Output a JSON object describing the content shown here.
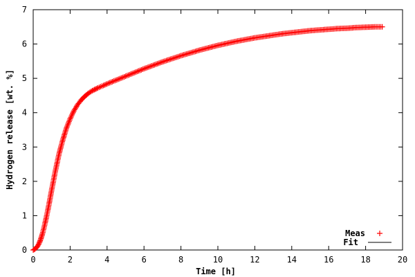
{
  "chart_data": {
    "type": "scatter",
    "xlabel": "Time [h]",
    "ylabel": "Hydrogen release [wt. %]",
    "xlim": [
      0,
      20
    ],
    "ylim": [
      0,
      7
    ],
    "xticks": [
      0,
      2,
      4,
      6,
      8,
      10,
      12,
      14,
      16,
      18,
      20
    ],
    "yticks": [
      0,
      1,
      2,
      3,
      4,
      5,
      6,
      7
    ],
    "grid": false,
    "legend_position": "bottom-right",
    "series": [
      {
        "name": "Meas",
        "style": "points",
        "marker": "plus",
        "color": "#ff0000",
        "x": [
          0.0,
          0.1,
          0.2,
          0.3,
          0.4,
          0.5,
          0.6,
          0.7,
          0.8,
          0.9,
          1.0,
          1.2,
          1.4,
          1.6,
          1.8,
          2.0,
          2.2,
          2.4,
          2.6,
          2.8,
          3.0,
          3.2,
          3.5,
          3.8,
          4.0,
          4.5,
          5.0,
          5.5,
          6.0,
          6.5,
          7.0,
          7.5,
          8.0,
          8.5,
          9.0,
          9.5,
          10.0,
          10.5,
          11.0,
          11.5,
          12.0,
          12.5,
          13.0,
          13.5,
          14.0,
          14.5,
          15.0,
          15.5,
          16.0,
          16.5,
          17.0,
          17.5,
          18.0,
          18.5,
          18.9
        ],
        "y": [
          0.0,
          0.03,
          0.08,
          0.17,
          0.3,
          0.47,
          0.68,
          0.92,
          1.18,
          1.46,
          1.75,
          2.3,
          2.8,
          3.2,
          3.55,
          3.82,
          4.05,
          4.23,
          4.37,
          4.48,
          4.57,
          4.64,
          4.72,
          4.79,
          4.84,
          4.95,
          5.06,
          5.17,
          5.28,
          5.38,
          5.48,
          5.57,
          5.66,
          5.74,
          5.82,
          5.89,
          5.96,
          6.02,
          6.08,
          6.13,
          6.18,
          6.22,
          6.26,
          6.3,
          6.33,
          6.36,
          6.39,
          6.41,
          6.43,
          6.45,
          6.46,
          6.48,
          6.49,
          6.5,
          6.5
        ]
      },
      {
        "name": "Fit",
        "style": "line",
        "color": "#000000",
        "x": [
          0.0,
          0.1,
          0.2,
          0.3,
          0.4,
          0.5,
          0.6,
          0.7,
          0.8,
          0.9,
          1.0,
          1.2,
          1.4,
          1.6,
          1.8,
          2.0,
          2.2,
          2.4,
          2.6,
          2.8,
          3.0,
          3.2,
          3.5,
          3.8,
          4.0,
          4.5,
          5.0,
          5.5,
          6.0,
          6.5,
          7.0,
          7.5,
          8.0,
          8.5,
          9.0,
          9.5,
          10.0,
          10.5,
          11.0,
          11.5,
          12.0,
          12.5,
          13.0,
          13.5,
          14.0,
          14.5,
          15.0,
          15.5,
          16.0,
          16.5,
          17.0,
          17.5,
          18.0,
          18.5,
          18.9
        ],
        "y": [
          0.0,
          0.03,
          0.08,
          0.17,
          0.3,
          0.47,
          0.68,
          0.92,
          1.18,
          1.46,
          1.75,
          2.3,
          2.8,
          3.2,
          3.55,
          3.82,
          4.05,
          4.23,
          4.37,
          4.48,
          4.57,
          4.64,
          4.72,
          4.79,
          4.84,
          4.95,
          5.06,
          5.17,
          5.28,
          5.38,
          5.48,
          5.57,
          5.66,
          5.74,
          5.82,
          5.89,
          5.96,
          6.02,
          6.08,
          6.13,
          6.18,
          6.22,
          6.26,
          6.3,
          6.33,
          6.36,
          6.39,
          6.41,
          6.43,
          6.45,
          6.46,
          6.48,
          6.49,
          6.5,
          6.5
        ]
      }
    ]
  }
}
